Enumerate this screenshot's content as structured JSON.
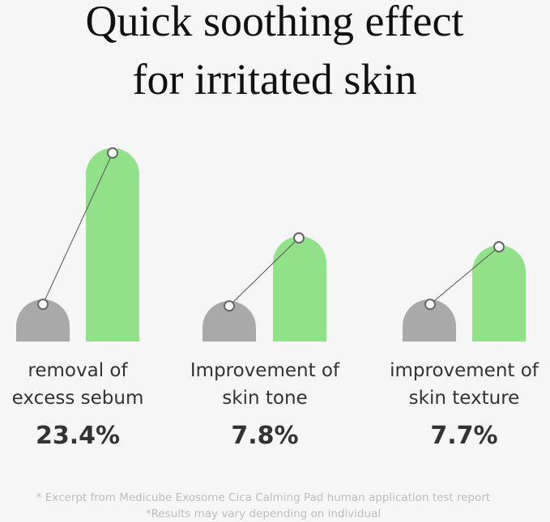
{
  "title_lines": [
    "Quick soothing effect",
    "for irritated skin"
  ],
  "groups": [
    {
      "label_lines": [
        "removal of",
        "excess sebum"
      ],
      "value": "23.4%"
    },
    {
      "label_lines": [
        "Improvement of",
        "skin tone"
      ],
      "value": "7.8%"
    },
    {
      "label_lines": [
        "improvement of",
        "skin texture"
      ],
      "value": "7.7%"
    }
  ],
  "footnotes": [
    "* Excerpt from Medicube Exosome Cica Calming Pad human application test report",
    "*Results may vary depending on individual"
  ]
}
